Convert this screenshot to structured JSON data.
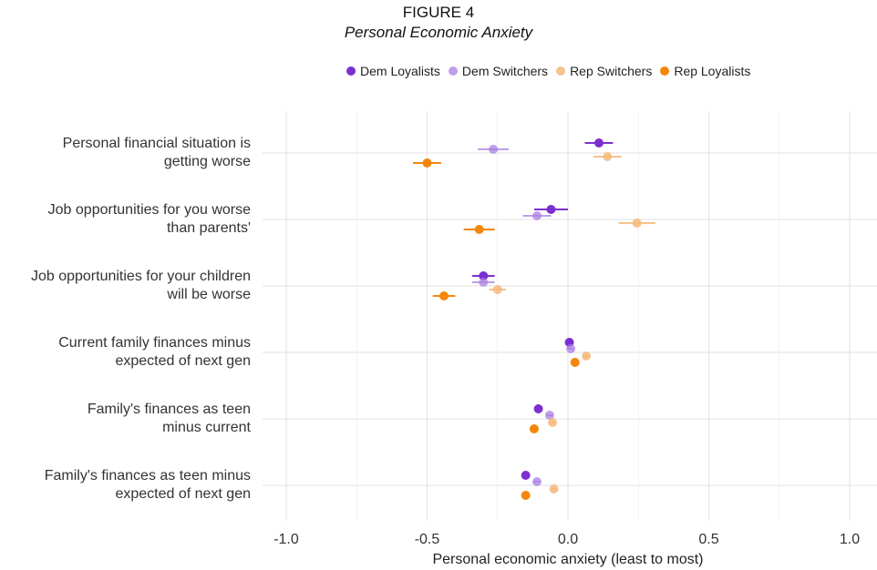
{
  "figure_number": "FIGURE 4",
  "figure_title": "Personal Economic Anxiety",
  "chart_data": {
    "type": "scatter",
    "subtype": "dot-and-whisker",
    "title": "Personal Economic Anxiety",
    "xlabel": "Personal economic anxiety (least to most)",
    "ylabel": "",
    "xlim": [
      -1.0,
      1.0
    ],
    "x_ticks": [
      "-1.0",
      "-0.5",
      "0.0",
      "0.5",
      "1.0"
    ],
    "x_tick_values": [
      -1.0,
      -0.5,
      0.0,
      0.5,
      1.0
    ],
    "grid": true,
    "legend_position": "top",
    "categories": [
      "Personal financial situation is getting worse",
      "Job opportunities for you worse than parents'",
      "Job opportunities for your children will be worse",
      "Current family finances minus expected of next gen",
      "Family's finances as teen minus current",
      "Family's finances as teen minus expected of next gen"
    ],
    "category_lines": [
      [
        "Personal financial situation is",
        "getting worse"
      ],
      [
        "Job opportunities for you worse",
        "than parents'"
      ],
      [
        "Job opportunities for your children",
        "will be worse"
      ],
      [
        "Current family finances minus",
        "expected of next gen"
      ],
      [
        "Family's finances as teen",
        "minus current"
      ],
      [
        "Family's finances as teen minus",
        "expected of next gen"
      ]
    ],
    "series": [
      {
        "name": "Dem Loyalists",
        "color": "#7b2fd0",
        "opacity": 1.0,
        "values": [
          0.11,
          -0.06,
          -0.3,
          0.005,
          -0.105,
          -0.15
        ],
        "ci": [
          [
            0.06,
            0.16
          ],
          [
            -0.12,
            0.0
          ],
          [
            -0.34,
            -0.26
          ],
          [
            -0.005,
            0.015
          ],
          [
            -0.115,
            -0.095
          ],
          [
            -0.165,
            -0.135
          ]
        ]
      },
      {
        "name": "Dem Switchers",
        "color": "#a97fe3",
        "opacity": 0.75,
        "values": [
          -0.265,
          -0.11,
          -0.3,
          0.01,
          -0.065,
          -0.11
        ],
        "ci": [
          [
            -0.32,
            -0.21
          ],
          [
            -0.16,
            -0.06
          ],
          [
            -0.34,
            -0.26
          ],
          [
            0.0,
            0.02
          ],
          [
            -0.075,
            -0.055
          ],
          [
            -0.12,
            -0.1
          ]
        ]
      },
      {
        "name": "Rep Switchers",
        "color": "#f5b87a",
        "opacity": 0.85,
        "values": [
          0.14,
          0.245,
          -0.25,
          0.065,
          -0.055,
          -0.05
        ],
        "ci": [
          [
            0.09,
            0.19
          ],
          [
            0.18,
            0.31
          ],
          [
            -0.28,
            -0.22
          ],
          [
            0.055,
            0.075
          ],
          [
            -0.065,
            -0.045
          ],
          [
            -0.06,
            -0.04
          ]
        ]
      },
      {
        "name": "Rep Loyalists",
        "color": "#f5860c",
        "opacity": 1.0,
        "values": [
          -0.5,
          -0.315,
          -0.44,
          0.025,
          -0.12,
          -0.15
        ],
        "ci": [
          [
            -0.55,
            -0.45
          ],
          [
            -0.37,
            -0.26
          ],
          [
            -0.48,
            -0.4
          ],
          [
            0.015,
            0.035
          ],
          [
            -0.13,
            -0.11
          ],
          [
            -0.16,
            -0.14
          ]
        ]
      }
    ]
  }
}
